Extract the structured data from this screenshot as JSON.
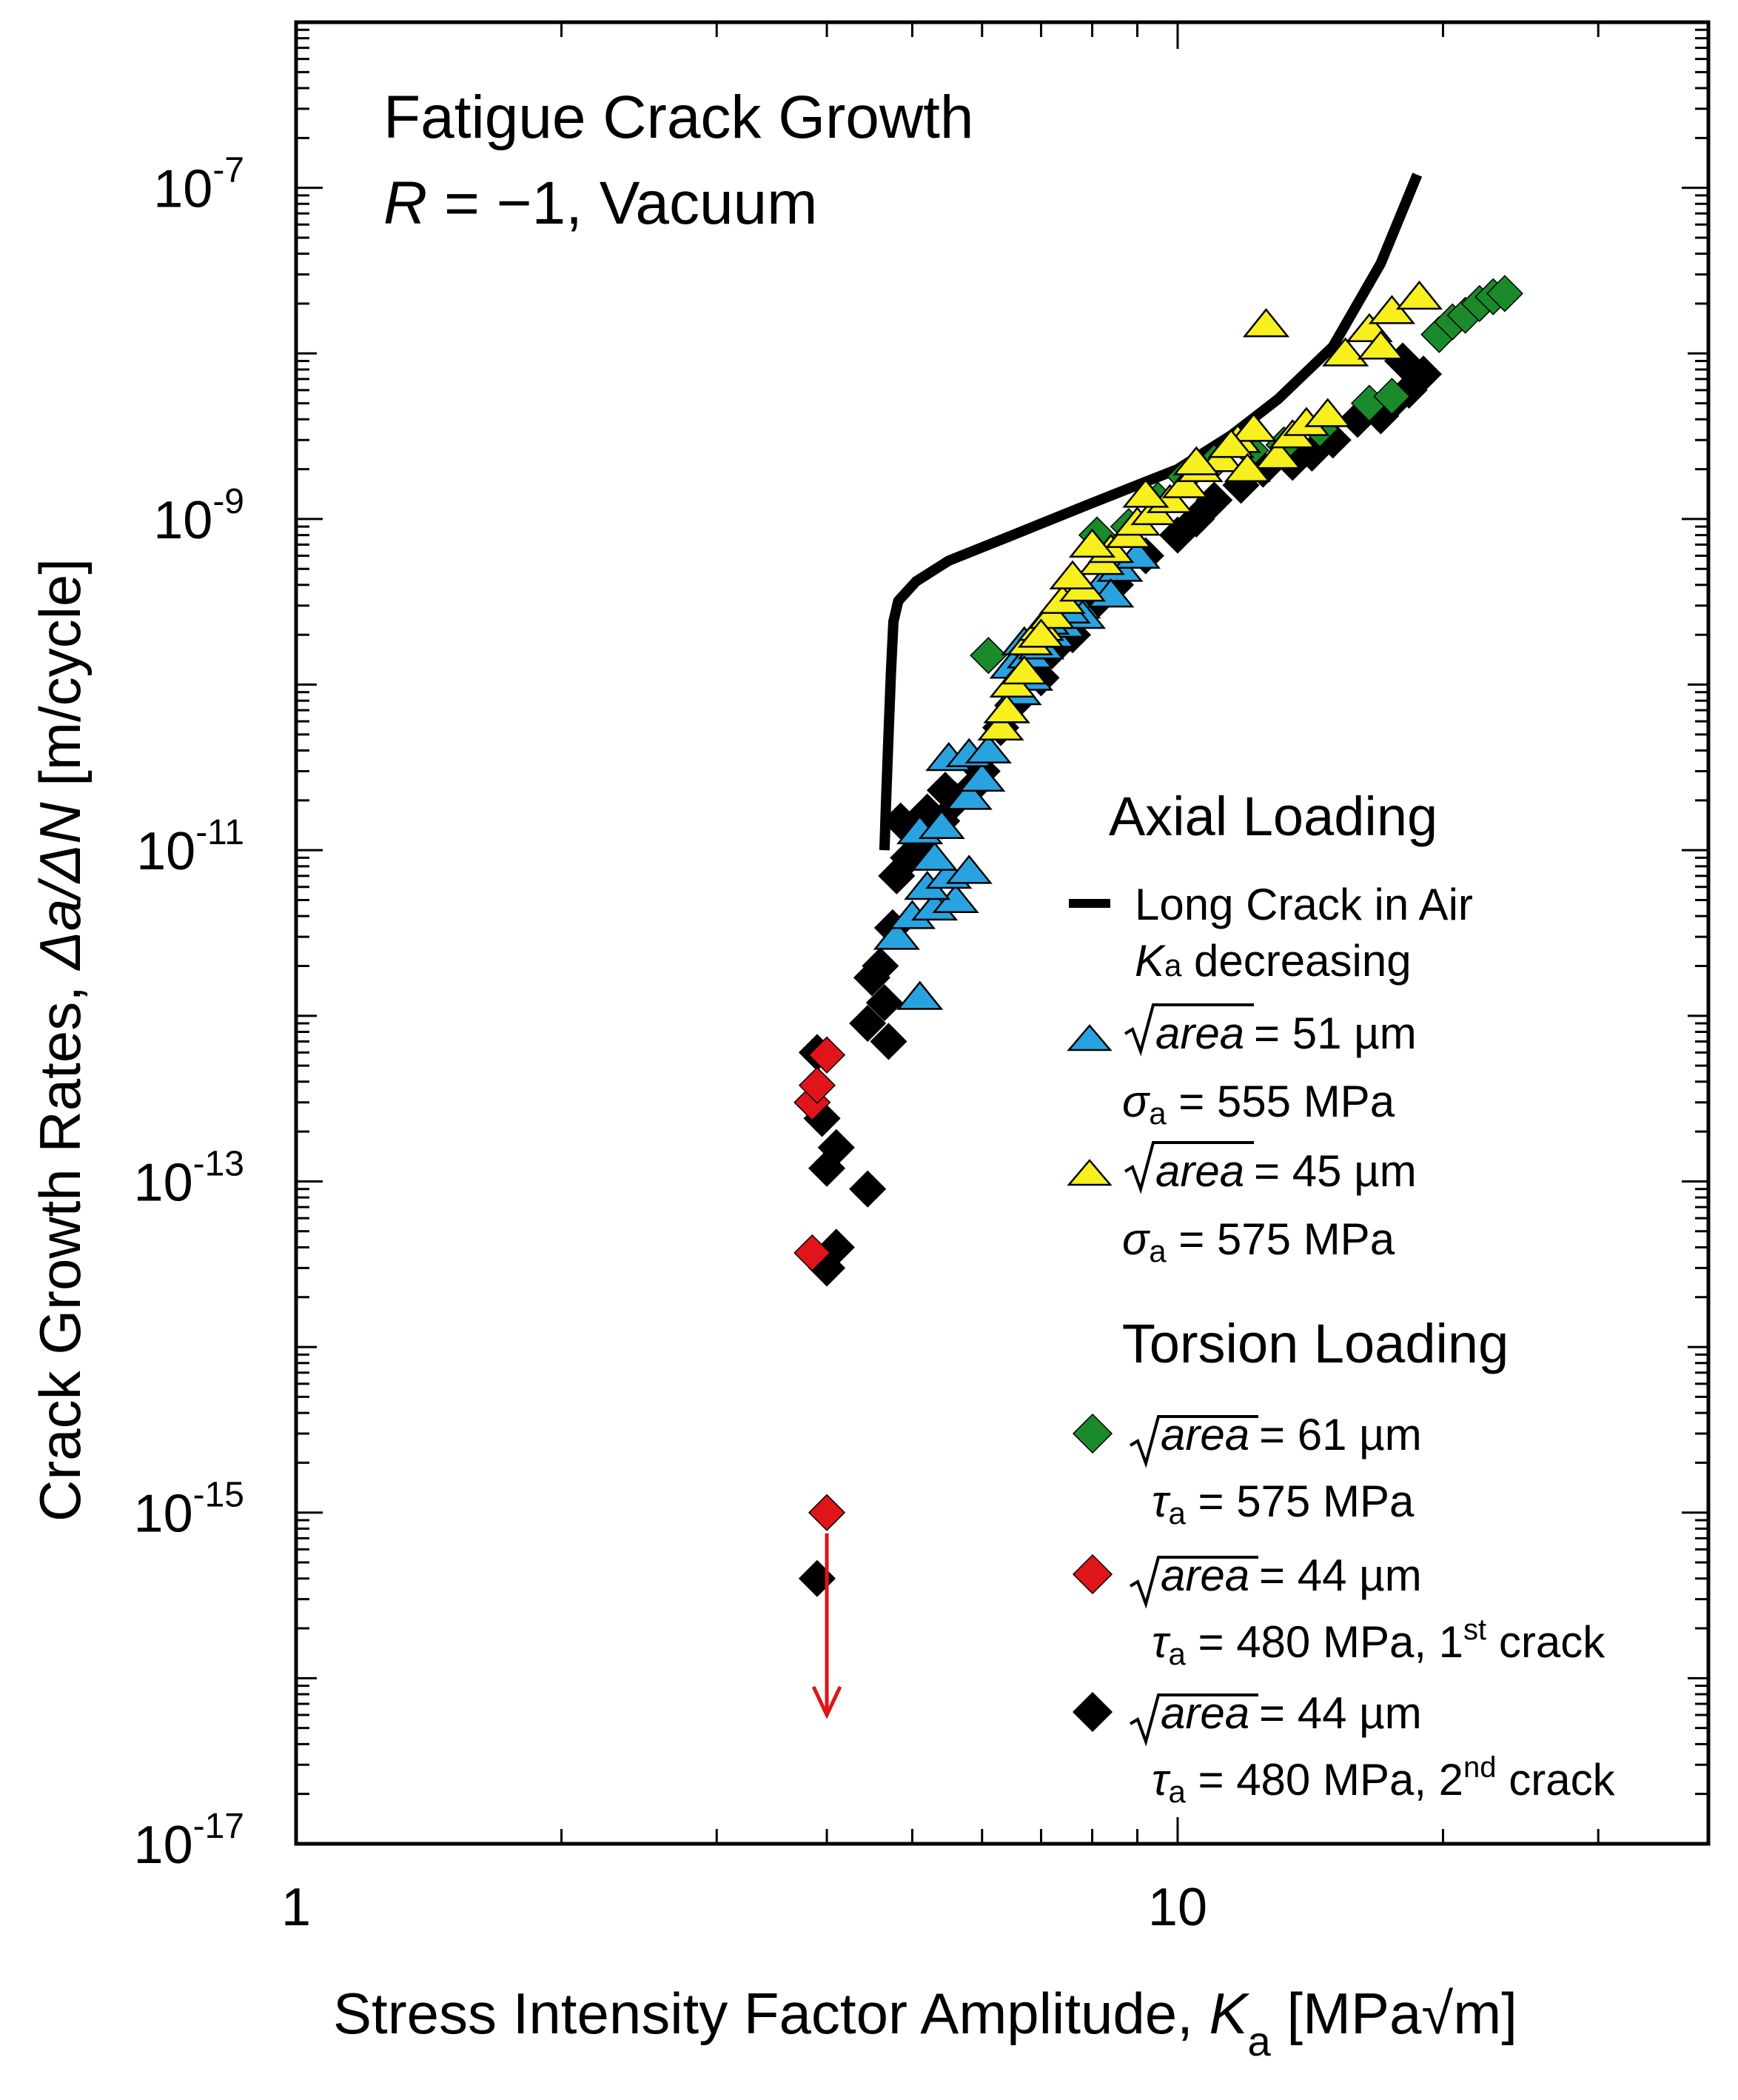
{
  "chart_data": {
    "type": "scatter",
    "title": "Fatigue Crack Growth",
    "subtitle": {
      "r_symbol": "R",
      "r_rest": " = −1, Vacuum"
    },
    "xlabel": {
      "main": "Stress Intensity Factor Amplitude, ",
      "var": "K",
      "sub": "a",
      "unit_open": " [MPa",
      "sqrt": "√",
      "unit_rest": "m]"
    },
    "ylabel": {
      "main": "Crack Growth Rates, ",
      "expr": "Δa/ΔN",
      "unit": " [m/cycle]"
    },
    "x_scale": "log",
    "y_scale": "log",
    "xlim": [
      1,
      40
    ],
    "ylim": [
      1e-17,
      1e-06
    ],
    "x_ticks": [
      {
        "value": 1,
        "label": "1"
      },
      {
        "value": 10,
        "label": "10"
      }
    ],
    "y_ticks": [
      {
        "value": 1e-07,
        "base": "10",
        "exp": "-7"
      },
      {
        "value": 1e-09,
        "base": "10",
        "exp": "-9"
      },
      {
        "value": 1e-11,
        "base": "10",
        "exp": "-11"
      },
      {
        "value": 1e-13,
        "base": "10",
        "exp": "-13"
      },
      {
        "value": 1e-15,
        "base": "10",
        "exp": "-15"
      },
      {
        "value": 1e-17,
        "base": "10",
        "exp": "-17"
      }
    ],
    "legend": {
      "axial_heading": "Axial Loading",
      "torsion_heading": "Torsion Loading",
      "long_crack": {
        "line1": "Long Crack in Air",
        "sym": "K",
        "sub": "a",
        "line2_rest": " decreasing"
      },
      "entries": [
        {
          "series": "blue",
          "root": "area",
          "size": " = 51 µm",
          "stress_sym": "σ",
          "stress_sub": "a",
          "stress_val": " = 555 MPa",
          "sup": "",
          "suffix": ""
        },
        {
          "series": "yellow",
          "root": "area",
          "size": " = 45 µm",
          "stress_sym": "σ",
          "stress_sub": "a",
          "stress_val": " = 575 MPa",
          "sup": "",
          "suffix": ""
        },
        {
          "series": "green",
          "root": "area",
          "size": " = 61 µm",
          "stress_sym": "τ",
          "stress_sub": "a",
          "stress_val": " = 575 MPa",
          "sup": "",
          "suffix": ""
        },
        {
          "series": "red",
          "root": "area",
          "size": " = 44 µm",
          "stress_sym": "τ",
          "stress_sub": "a",
          "stress_val": " = 480 MPa, 1",
          "sup": "st",
          "suffix": " crack"
        },
        {
          "series": "black",
          "root": "area",
          "size": " = 44 µm",
          "stress_sym": "τ",
          "stress_sub": "a",
          "stress_val": " = 480 MPa, 2",
          "sup": "nd",
          "suffix": " crack"
        }
      ]
    },
    "colors": {
      "blue": "#29a3e0",
      "yellow": "#f7ef1e",
      "green": "#1a8a2b",
      "red": "#e0141b",
      "black": "#000000"
    },
    "long_crack_curve": [
      [
        4.65,
        1e-11
      ],
      [
        4.67,
        2e-11
      ],
      [
        4.7,
        5e-11
      ],
      [
        4.73,
        1.2e-10
      ],
      [
        4.76,
        2.4e-10
      ],
      [
        4.82,
        3.2e-10
      ],
      [
        5.05,
        4.2e-10
      ],
      [
        5.5,
        5.6e-10
      ],
      [
        6.5,
        8e-10
      ],
      [
        8,
        1.25e-09
      ],
      [
        10,
        2e-09
      ],
      [
        11.5,
        3.2e-09
      ],
      [
        13,
        5.3e-09
      ],
      [
        15,
        1.1e-08
      ],
      [
        17,
        3.5e-08
      ],
      [
        18.7,
        1.2e-07
      ]
    ],
    "series": [
      {
        "key": "black",
        "marker": "diamond",
        "points": [
          [
            3.9,
            4e-16
          ],
          [
            4.0,
            3e-14
          ],
          [
            4.1,
            4e-14
          ],
          [
            4.45,
            9e-14
          ],
          [
            4.0,
            1.2e-13
          ],
          [
            4.1,
            1.6e-13
          ],
          [
            3.95,
            2.4e-13
          ],
          [
            3.9,
            6e-13
          ],
          [
            4.45,
            9e-13
          ],
          [
            4.7,
            7e-13
          ],
          [
            4.5,
            1.7e-12
          ],
          [
            4.6,
            2e-12
          ],
          [
            4.75,
            3.4e-12
          ],
          [
            4.65,
            1.2e-12
          ],
          [
            4.8,
            7e-12
          ],
          [
            4.95,
            9e-12
          ],
          [
            5.1,
            1.1e-11
          ],
          [
            5.4,
            1.5e-11
          ],
          [
            5.6,
            2e-11
          ],
          [
            5.9,
            2.5e-11
          ],
          [
            4.85,
            1.5e-11
          ],
          [
            5.2,
            1.7e-11
          ],
          [
            5.45,
            2.3e-11
          ],
          [
            6.0,
            3e-11
          ],
          [
            6.3,
            5.5e-11
          ],
          [
            6.5,
            7.5e-11
          ],
          [
            7.0,
            1.1e-10
          ],
          [
            7.2,
            1.6e-10
          ],
          [
            7.6,
            2e-10
          ],
          [
            8.0,
            3e-10
          ],
          [
            8.5,
            4e-10
          ],
          [
            9.2,
            6e-10
          ],
          [
            10.0,
            8e-10
          ],
          [
            10.5,
            1e-09
          ],
          [
            11.0,
            1.3e-09
          ],
          [
            11.8,
            1.6e-09
          ],
          [
            12.5,
            2e-09
          ],
          [
            13.5,
            2.2e-09
          ],
          [
            14.2,
            2.5e-09
          ],
          [
            15.0,
            3e-09
          ],
          [
            16.0,
            4e-09
          ],
          [
            16.8,
            4.5e-09
          ],
          [
            17.5,
            5e-09
          ],
          [
            18.3,
            6e-09
          ],
          [
            19.0,
            7.5e-09
          ],
          [
            18.0,
            9e-09
          ],
          [
            17.0,
            4.2e-09
          ]
        ]
      },
      {
        "key": "red",
        "marker": "diamond",
        "points": [
          [
            3.85,
            3.7e-14
          ],
          [
            3.85,
            3e-13
          ],
          [
            3.9,
            3.8e-13
          ],
          [
            4.0,
            5.8e-13
          ],
          [
            4.0,
            1e-15
          ]
        ]
      },
      {
        "key": "green",
        "marker": "diamond",
        "points": [
          [
            6.1,
            1.5e-10
          ],
          [
            8.1,
            8e-10
          ],
          [
            8.8,
            9e-10
          ],
          [
            9.5,
            1.3e-09
          ],
          [
            10.2,
            1.8e-09
          ],
          [
            11.0,
            2.2e-09
          ],
          [
            12.1,
            2.6e-09
          ],
          [
            13.2,
            2.8e-09
          ],
          [
            14.5,
            3.5e-09
          ],
          [
            16.5,
            5e-09
          ],
          [
            17.5,
            5.5e-09
          ],
          [
            19.8,
            1.3e-08
          ],
          [
            20.5,
            1.55e-08
          ],
          [
            21.2,
            1.7e-08
          ],
          [
            22.0,
            2e-08
          ],
          [
            22.8,
            2.2e-08
          ],
          [
            23.5,
            2.3e-08
          ]
        ]
      },
      {
        "key": "blue",
        "marker": "triangle",
        "points": [
          [
            5.1,
            1.3e-12
          ],
          [
            4.8,
            3e-12
          ],
          [
            5.0,
            4e-12
          ],
          [
            5.3,
            4.5e-12
          ],
          [
            5.6,
            5e-12
          ],
          [
            5.2,
            6e-12
          ],
          [
            5.5,
            7e-12
          ],
          [
            5.8,
            7.5e-12
          ],
          [
            5.3,
            9e-12
          ],
          [
            5.1,
            1.3e-11
          ],
          [
            5.4,
            1.4e-11
          ],
          [
            5.8,
            2.1e-11
          ],
          [
            6.0,
            2.7e-11
          ],
          [
            5.5,
            3.6e-11
          ],
          [
            5.8,
            3.8e-11
          ],
          [
            6.1,
            4e-11
          ],
          [
            6.4,
            7e-11
          ],
          [
            6.6,
            9e-11
          ],
          [
            6.8,
            1.1e-10
          ],
          [
            6.5,
            1.3e-10
          ],
          [
            6.8,
            1.5e-10
          ],
          [
            7.0,
            1.7e-10
          ],
          [
            7.2,
            2e-10
          ],
          [
            7.4,
            2.3e-10
          ],
          [
            7.7,
            3e-10
          ],
          [
            8.2,
            4e-10
          ],
          [
            8.6,
            5e-10
          ],
          [
            9.0,
            6e-10
          ],
          [
            7.8,
            2.6e-10
          ],
          [
            6.7,
            1.8e-10
          ],
          [
            7.1,
            2.4e-10
          ],
          [
            7.5,
            2.8e-10
          ],
          [
            8.4,
            3.5e-10
          ]
        ]
      },
      {
        "key": "yellow",
        "marker": "triangle",
        "points": [
          [
            6.3,
            5.5e-11
          ],
          [
            6.4,
            7e-11
          ],
          [
            6.5,
            1e-10
          ],
          [
            6.7,
            1.2e-10
          ],
          [
            6.8,
            1.8e-10
          ],
          [
            7.0,
            2.2e-10
          ],
          [
            7.2,
            2.6e-10
          ],
          [
            7.4,
            3.2e-10
          ],
          [
            7.8,
            3.8e-10
          ],
          [
            8.2,
            5.5e-10
          ],
          [
            8.4,
            6.5e-10
          ],
          [
            8.8,
            8e-10
          ],
          [
            9.0,
            9.5e-10
          ],
          [
            9.4,
            1.1e-09
          ],
          [
            9.8,
            1.3e-09
          ],
          [
            10.2,
            1.6e-09
          ],
          [
            10.6,
            2e-09
          ],
          [
            11.2,
            2.3e-09
          ],
          [
            11.7,
            3e-09
          ],
          [
            12.2,
            3.5e-09
          ],
          [
            13.0,
            2.4e-09
          ],
          [
            13.5,
            3.2e-09
          ],
          [
            14.0,
            3.8e-09
          ],
          [
            14.8,
            4.3e-09
          ],
          [
            10.5,
            2.2e-09
          ],
          [
            11.5,
            2.8e-09
          ],
          [
            12.6,
            1.5e-08
          ],
          [
            15.5,
            1e-08
          ],
          [
            16.5,
            1.4e-08
          ],
          [
            17.5,
            1.8e-08
          ],
          [
            18.8,
            2.2e-08
          ],
          [
            17.0,
            1.1e-08
          ],
          [
            12.0,
            2e-09
          ],
          [
            9.2,
            1.4e-09
          ],
          [
            8.0,
            7e-10
          ],
          [
            7.6,
            4.5e-10
          ],
          [
            7.0,
            2e-10
          ]
        ]
      }
    ],
    "red_arrow": {
      "x": 4.0,
      "from": 1e-15,
      "to": 6e-17
    }
  }
}
